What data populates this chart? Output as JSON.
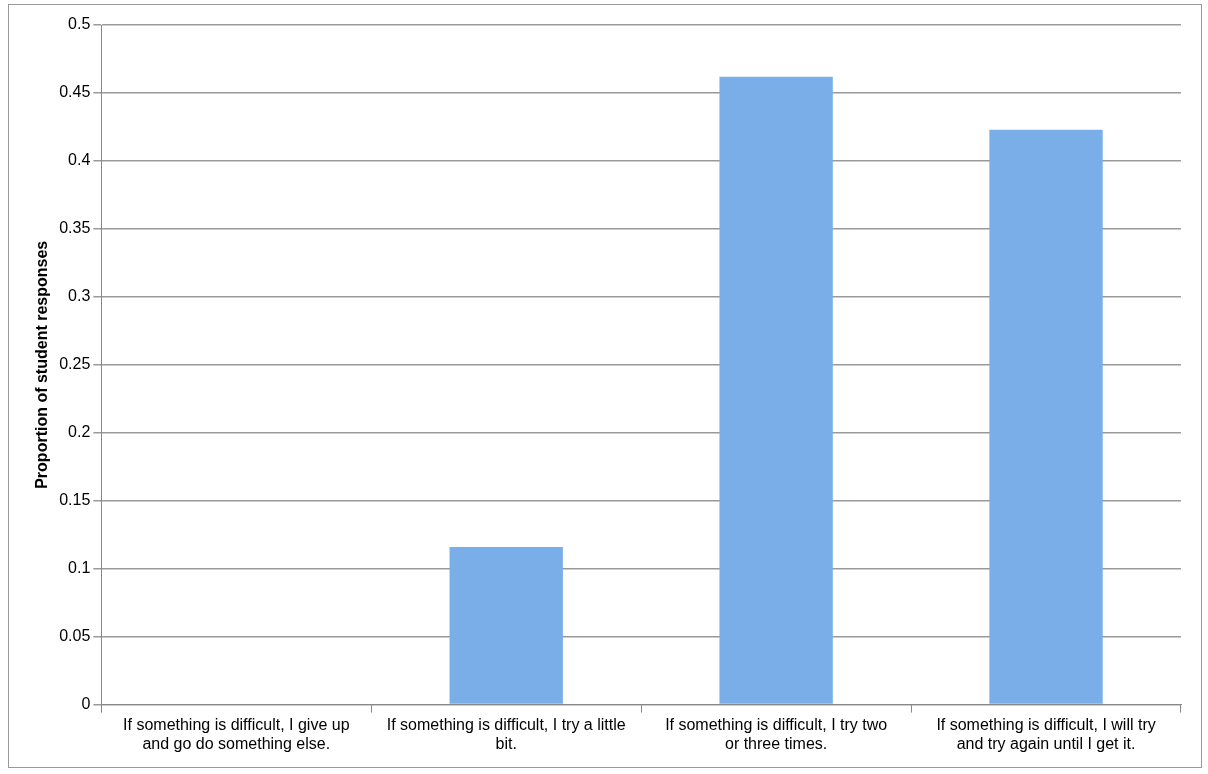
{
  "chart_data": {
    "type": "bar",
    "ylabel": "Proportion of student responses",
    "categories": [
      "If something is difficult, I give up and go do something else.",
      "If something is difficult, I try a little bit.",
      "If something is difficult, I try two or three times.",
      "If something is difficult, I will try and try again until I get it."
    ],
    "values": [
      0,
      0.116,
      0.462,
      0.423
    ],
    "color": "#7aaee8",
    "ylim": [
      0,
      0.5
    ],
    "yticks": [
      0,
      0.05,
      0.1,
      0.15,
      0.2,
      0.25,
      0.3,
      0.35,
      0.4,
      0.45,
      0.5
    ],
    "grid": "y"
  }
}
